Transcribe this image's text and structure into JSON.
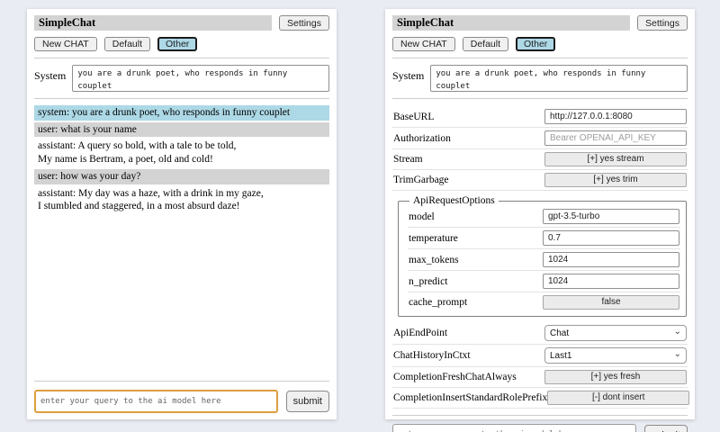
{
  "colors": {
    "page_bg": "#e9edf3",
    "titlebar_bg": "#d3d3d3",
    "active_session_bg": "#add8e6",
    "system_msg_bg": "#add8e6",
    "user_msg_bg": "#d3d3d3",
    "focus_border": "#dd9f3e"
  },
  "header": {
    "title": "SimpleChat",
    "settings_label": "Settings",
    "new_chat_label": "New CHAT",
    "sessions": [
      "Default",
      "Other"
    ],
    "active_session": "Other"
  },
  "system": {
    "label": "System",
    "value": "you are a drunk poet, who responds in funny couplet"
  },
  "chat": {
    "messages": [
      {
        "role": "system",
        "text": "system: you are a drunk poet, who responds in funny couplet"
      },
      {
        "role": "user",
        "text": "user: what is your name"
      },
      {
        "role": "assistant",
        "text": "assistant: A query so bold, with a tale to be told,\nMy name is Bertram, a poet, old and cold!"
      },
      {
        "role": "user",
        "text": "user: how was your day?"
      },
      {
        "role": "assistant",
        "text": "assistant: My day was a haze, with a drink in my gaze,\nI stumbled and staggered, in a most absurd daze!"
      }
    ]
  },
  "query": {
    "placeholder": "enter your query to the ai model here",
    "submit_label": "submit"
  },
  "settings": {
    "rows_top": [
      {
        "label": "BaseURL",
        "type": "text",
        "value": "http://127.0.0.1:8080"
      },
      {
        "label": "Authorization",
        "type": "text",
        "value": "",
        "placeholder": "Bearer OPENAI_API_KEY"
      },
      {
        "label": "Stream",
        "type": "button",
        "value": "[+] yes stream"
      },
      {
        "label": "TrimGarbage",
        "type": "button",
        "value": "[+] yes trim"
      }
    ],
    "fieldset": {
      "legend": "ApiRequestOptions",
      "rows": [
        {
          "label": "model",
          "type": "text",
          "value": "gpt-3.5-turbo"
        },
        {
          "label": "temperature",
          "type": "text",
          "value": "0.7"
        },
        {
          "label": "max_tokens",
          "type": "text",
          "value": "1024"
        },
        {
          "label": "n_predict",
          "type": "text",
          "value": "1024"
        },
        {
          "label": "cache_prompt",
          "type": "button",
          "value": "false"
        }
      ]
    },
    "rows_bottom": [
      {
        "label": "ApiEndPoint",
        "type": "select",
        "value": "Chat"
      },
      {
        "label": "ChatHistoryInCtxt",
        "type": "select",
        "value": "Last1"
      },
      {
        "label": "CompletionFreshChatAlways",
        "type": "button",
        "value": "[+] yes fresh"
      },
      {
        "label": "CompletionInsertStandardRolePrefix",
        "type": "button",
        "value": "[-] dont insert"
      }
    ]
  }
}
